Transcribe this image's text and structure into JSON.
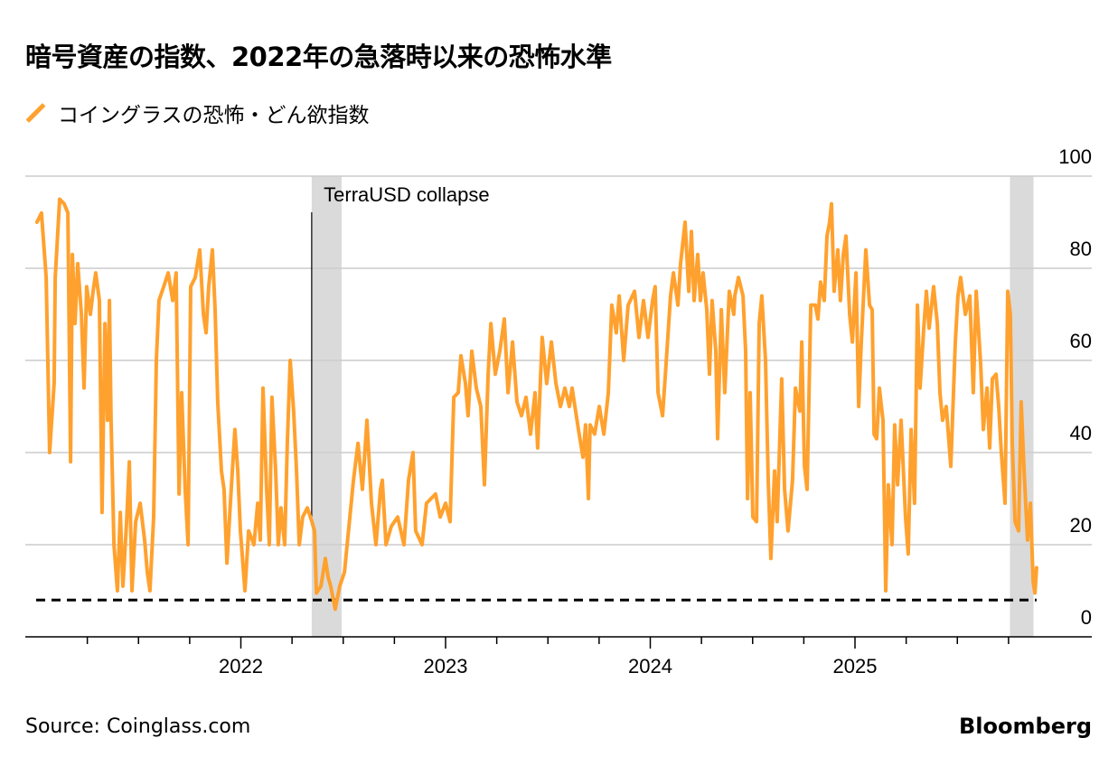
{
  "title": "暗号資産の指数、2022年の急落時以来の恐怖水準",
  "legend": {
    "label": "コイングラスの恐怖・どん欲指数",
    "icon": "orange-slash-icon"
  },
  "source": "Source: Coinglass.com",
  "brand": "Bloomberg",
  "colors": {
    "line": "#ffa12e",
    "shade": "#dadada",
    "grid": "#cccccc",
    "axis": "#000000"
  },
  "chart_data": {
    "type": "line",
    "title": "暗号資産の指数、2022年の急落時以来の恐怖水準",
    "xlabel": "",
    "ylabel": "",
    "ylim": [
      0,
      100
    ],
    "xlim": [
      2021.0,
      2026.0
    ],
    "yticks": [
      0,
      20,
      40,
      60,
      80,
      100
    ],
    "ytick_labels": [
      "0",
      "20",
      "40",
      "60",
      "80",
      "100"
    ],
    "xticks": [
      2022,
      2023,
      2024,
      2025
    ],
    "xtick_labels": [
      "2022",
      "2023",
      "2024",
      "2025"
    ],
    "grid": true,
    "legend_placement": "top-left",
    "threshold": {
      "value": 8,
      "style": "dashed"
    },
    "shaded_periods": [
      [
        2022.346,
        2022.492
      ],
      [
        2025.757,
        2025.872
      ]
    ],
    "annotations": [
      {
        "text": "TerraUSD collapse",
        "x": 2022.346
      }
    ],
    "series": [
      {
        "name": "コイングラスの恐怖・どん欲指数",
        "points": [
          [
            2021.004,
            90
          ],
          [
            2021.026,
            92
          ],
          [
            2021.049,
            78
          ],
          [
            2021.066,
            40
          ],
          [
            2021.088,
            55
          ],
          [
            2021.093,
            78
          ],
          [
            2021.115,
            95
          ],
          [
            2021.137,
            94
          ],
          [
            2021.155,
            92
          ],
          [
            2021.168,
            38
          ],
          [
            2021.177,
            83
          ],
          [
            2021.19,
            68
          ],
          [
            2021.203,
            81
          ],
          [
            2021.221,
            70
          ],
          [
            2021.234,
            54
          ],
          [
            2021.247,
            76
          ],
          [
            2021.265,
            70
          ],
          [
            2021.278,
            75
          ],
          [
            2021.291,
            79
          ],
          [
            2021.309,
            73
          ],
          [
            2021.322,
            27
          ],
          [
            2021.336,
            68
          ],
          [
            2021.349,
            47
          ],
          [
            2021.358,
            73
          ],
          [
            2021.366,
            47
          ],
          [
            2021.38,
            20
          ],
          [
            2021.397,
            10
          ],
          [
            2021.411,
            27
          ],
          [
            2021.424,
            11
          ],
          [
            2021.442,
            25
          ],
          [
            2021.455,
            38
          ],
          [
            2021.468,
            10
          ],
          [
            2021.486,
            25
          ],
          [
            2021.508,
            29
          ],
          [
            2021.53,
            21
          ],
          [
            2021.543,
            14
          ],
          [
            2021.556,
            10
          ],
          [
            2021.574,
            26
          ],
          [
            2021.587,
            60
          ],
          [
            2021.6,
            73
          ],
          [
            2021.623,
            76
          ],
          [
            2021.645,
            79
          ],
          [
            2021.667,
            73
          ],
          [
            2021.684,
            79
          ],
          [
            2021.698,
            31
          ],
          [
            2021.711,
            53
          ],
          [
            2021.728,
            32
          ],
          [
            2021.742,
            20
          ],
          [
            2021.755,
            76
          ],
          [
            2021.777,
            78
          ],
          [
            2021.799,
            84
          ],
          [
            2021.817,
            70
          ],
          [
            2021.83,
            66
          ],
          [
            2021.843,
            76
          ],
          [
            2021.861,
            84
          ],
          [
            2021.874,
            71
          ],
          [
            2021.887,
            51
          ],
          [
            2021.905,
            36
          ],
          [
            2021.918,
            32
          ],
          [
            2021.932,
            16
          ],
          [
            2021.949,
            29
          ],
          [
            2021.971,
            45
          ],
          [
            2021.985,
            36
          ],
          [
            2021.998,
            23
          ],
          [
            2022.02,
            10
          ],
          [
            2022.038,
            23
          ],
          [
            2022.064,
            20
          ],
          [
            2022.082,
            29
          ],
          [
            2022.095,
            21
          ],
          [
            2022.108,
            54
          ],
          [
            2022.126,
            32
          ],
          [
            2022.139,
            20
          ],
          [
            2022.152,
            52
          ],
          [
            2022.17,
            36
          ],
          [
            2022.183,
            20
          ],
          [
            2022.196,
            28
          ],
          [
            2022.214,
            20
          ],
          [
            2022.227,
            42
          ],
          [
            2022.241,
            60
          ],
          [
            2022.258,
            49
          ],
          [
            2022.272,
            36
          ],
          [
            2022.285,
            20
          ],
          [
            2022.302,
            26
          ],
          [
            2022.325,
            28
          ],
          [
            2022.347,
            25
          ],
          [
            2022.36,
            23
          ],
          [
            2022.369,
            9.5
          ],
          [
            2022.391,
            11
          ],
          [
            2022.413,
            17
          ],
          [
            2022.426,
            13
          ],
          [
            2022.439,
            11
          ],
          [
            2022.461,
            6
          ],
          [
            2022.483,
            11
          ],
          [
            2022.506,
            14
          ],
          [
            2022.528,
            24
          ],
          [
            2022.55,
            34
          ],
          [
            2022.572,
            42
          ],
          [
            2022.594,
            32
          ],
          [
            2022.616,
            47
          ],
          [
            2022.638,
            29
          ],
          [
            2022.66,
            20
          ],
          [
            2022.682,
            32
          ],
          [
            2022.691,
            34
          ],
          [
            2022.709,
            20
          ],
          [
            2022.735,
            24
          ],
          [
            2022.766,
            26
          ],
          [
            2022.797,
            20
          ],
          [
            2022.819,
            34
          ],
          [
            2022.841,
            40
          ],
          [
            2022.854,
            23
          ],
          [
            2022.885,
            20
          ],
          [
            2022.907,
            29
          ],
          [
            2022.951,
            31
          ],
          [
            2022.974,
            26
          ],
          [
            2023.0,
            29
          ],
          [
            2023.022,
            25
          ],
          [
            2023.04,
            52
          ],
          [
            2023.062,
            53
          ],
          [
            2023.075,
            61
          ],
          [
            2023.097,
            55
          ],
          [
            2023.11,
            48
          ],
          [
            2023.128,
            62
          ],
          [
            2023.15,
            54
          ],
          [
            2023.172,
            50
          ],
          [
            2023.19,
            33
          ],
          [
            2023.208,
            57
          ],
          [
            2023.221,
            68
          ],
          [
            2023.243,
            57
          ],
          [
            2023.265,
            62
          ],
          [
            2023.287,
            69
          ],
          [
            2023.305,
            53
          ],
          [
            2023.327,
            64
          ],
          [
            2023.349,
            51
          ],
          [
            2023.371,
            48
          ],
          [
            2023.393,
            52
          ],
          [
            2023.415,
            44
          ],
          [
            2023.437,
            53
          ],
          [
            2023.45,
            41
          ],
          [
            2023.472,
            65
          ],
          [
            2023.494,
            55
          ],
          [
            2023.517,
            64
          ],
          [
            2023.539,
            55
          ],
          [
            2023.561,
            50
          ],
          [
            2023.583,
            54
          ],
          [
            2023.605,
            50
          ],
          [
            2023.618,
            54
          ],
          [
            2023.649,
            45
          ],
          [
            2023.671,
            39
          ],
          [
            2023.684,
            46
          ],
          [
            2023.698,
            30
          ],
          [
            2023.706,
            46
          ],
          [
            2023.728,
            44
          ],
          [
            2023.751,
            50
          ],
          [
            2023.773,
            44
          ],
          [
            2023.795,
            53
          ],
          [
            2023.812,
            72
          ],
          [
            2023.834,
            66
          ],
          [
            2023.848,
            74
          ],
          [
            2023.87,
            60
          ],
          [
            2023.892,
            72
          ],
          [
            2023.923,
            75
          ],
          [
            2023.945,
            65
          ],
          [
            2023.967,
            73
          ],
          [
            2023.989,
            65
          ],
          [
            2024.011,
            73
          ],
          [
            2024.024,
            76
          ],
          [
            2024.038,
            53
          ],
          [
            2024.06,
            48
          ],
          [
            2024.077,
            59
          ],
          [
            2024.099,
            74
          ],
          [
            2024.113,
            79
          ],
          [
            2024.135,
            72
          ],
          [
            2024.148,
            81
          ],
          [
            2024.17,
            90
          ],
          [
            2024.188,
            75
          ],
          [
            2024.201,
            88
          ],
          [
            2024.214,
            73
          ],
          [
            2024.232,
            83
          ],
          [
            2024.245,
            73
          ],
          [
            2024.258,
            79
          ],
          [
            2024.276,
            71
          ],
          [
            2024.289,
            57
          ],
          [
            2024.302,
            73
          ],
          [
            2024.32,
            62
          ],
          [
            2024.329,
            43
          ],
          [
            2024.347,
            71
          ],
          [
            2024.364,
            53
          ],
          [
            2024.386,
            75
          ],
          [
            2024.408,
            70
          ],
          [
            2024.413,
            74
          ],
          [
            2024.431,
            78
          ],
          [
            2024.453,
            74
          ],
          [
            2024.466,
            62
          ],
          [
            2024.475,
            30
          ],
          [
            2024.488,
            53
          ],
          [
            2024.501,
            26
          ],
          [
            2024.519,
            25
          ],
          [
            2024.532,
            68
          ],
          [
            2024.545,
            74
          ],
          [
            2024.563,
            60
          ],
          [
            2024.576,
            34
          ],
          [
            2024.589,
            17
          ],
          [
            2024.607,
            36
          ],
          [
            2024.62,
            25
          ],
          [
            2024.642,
            56
          ],
          [
            2024.656,
            32
          ],
          [
            2024.673,
            23
          ],
          [
            2024.695,
            34
          ],
          [
            2024.709,
            54
          ],
          [
            2024.731,
            49
          ],
          [
            2024.74,
            64
          ],
          [
            2024.753,
            37
          ],
          [
            2024.766,
            32
          ],
          [
            2024.784,
            72
          ],
          [
            2024.806,
            72
          ],
          [
            2024.819,
            69
          ],
          [
            2024.832,
            77
          ],
          [
            2024.85,
            73
          ],
          [
            2024.863,
            87
          ],
          [
            2024.876,
            90
          ],
          [
            2024.885,
            94
          ],
          [
            2024.898,
            75
          ],
          [
            2024.916,
            84
          ],
          [
            2024.929,
            73
          ],
          [
            2024.943,
            83
          ],
          [
            2024.956,
            87
          ],
          [
            2024.974,
            70
          ],
          [
            2024.987,
            64
          ],
          [
            2025.005,
            79
          ],
          [
            2025.018,
            50
          ],
          [
            2025.031,
            64
          ],
          [
            2025.053,
            84
          ],
          [
            2025.071,
            72
          ],
          [
            2025.084,
            71
          ],
          [
            2025.093,
            44
          ],
          [
            2025.106,
            43
          ],
          [
            2025.119,
            54
          ],
          [
            2025.137,
            47
          ],
          [
            2025.15,
            10
          ],
          [
            2025.163,
            33
          ],
          [
            2025.181,
            20
          ],
          [
            2025.194,
            46
          ],
          [
            2025.208,
            33
          ],
          [
            2025.225,
            47
          ],
          [
            2025.247,
            26
          ],
          [
            2025.26,
            18
          ],
          [
            2025.274,
            45
          ],
          [
            2025.291,
            29
          ],
          [
            2025.305,
            72
          ],
          [
            2025.318,
            54
          ],
          [
            2025.336,
            67
          ],
          [
            2025.349,
            75
          ],
          [
            2025.362,
            67
          ],
          [
            2025.384,
            76
          ],
          [
            2025.402,
            68
          ],
          [
            2025.415,
            53
          ],
          [
            2025.428,
            47
          ],
          [
            2025.446,
            50
          ],
          [
            2025.468,
            37
          ],
          [
            2025.49,
            64
          ],
          [
            2025.503,
            74
          ],
          [
            2025.516,
            78
          ],
          [
            2025.539,
            70
          ],
          [
            2025.561,
            74
          ],
          [
            2025.578,
            53
          ],
          [
            2025.592,
            75
          ],
          [
            2025.614,
            59
          ],
          [
            2025.627,
            45
          ],
          [
            2025.645,
            54
          ],
          [
            2025.658,
            41
          ],
          [
            2025.671,
            56
          ],
          [
            2025.689,
            57
          ],
          [
            2025.702,
            50
          ],
          [
            2025.715,
            40
          ],
          [
            2025.733,
            29
          ],
          [
            2025.746,
            75
          ],
          [
            2025.759,
            70
          ],
          [
            2025.768,
            42
          ],
          [
            2025.782,
            25
          ],
          [
            2025.799,
            23
          ],
          [
            2025.812,
            51
          ],
          [
            2025.826,
            36
          ],
          [
            2025.843,
            21
          ],
          [
            2025.857,
            29
          ],
          [
            2025.87,
            12
          ],
          [
            2025.879,
            9.5
          ],
          [
            2025.887,
            15
          ]
        ]
      }
    ]
  }
}
